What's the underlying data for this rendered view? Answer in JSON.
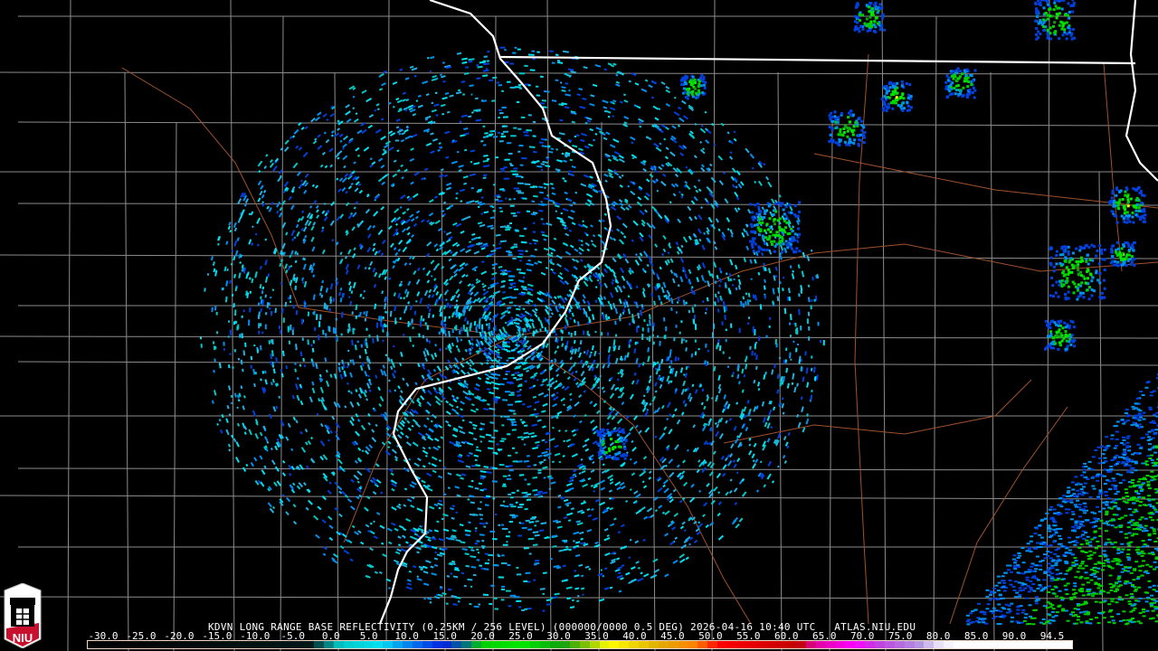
{
  "product": {
    "title": "KDVN LONG RANGE BASE REFLECTIVITY (0.25KM / 256 LEVEL) (000000/0000 0.5 DEG) 2026-04-16 10:40 UTC   ATLAS.NIU.EDU",
    "station": "KDVN",
    "elevation_deg": "0.5",
    "date": "2026-04-16",
    "time": "10:40 UTC",
    "source": "ATLAS.NIU.EDU"
  },
  "logo": {
    "text": "NIU",
    "colors": {
      "red": "#c8102e",
      "white": "#ffffff",
      "black": "#000000"
    }
  },
  "colorbar": {
    "min": -30.0,
    "max": 94.5,
    "labels": [
      "-30.0",
      "-25.0",
      "-20.0",
      "-15.0",
      "-10.0",
      "-5.0",
      "0.0",
      "5.0",
      "10.0",
      "15.0",
      "20.0",
      "25.0",
      "30.0",
      "35.0",
      "40.0",
      "45.0",
      "50.0",
      "55.0",
      "60.0",
      "65.0",
      "70.0",
      "75.0",
      "80.0",
      "85.0",
      "90.0",
      "94.5"
    ],
    "stops": [
      {
        "dbz": -30,
        "color": "#000000"
      },
      {
        "dbz": -2,
        "color": "#001818"
      },
      {
        "dbz": 0,
        "color": "#006e6e"
      },
      {
        "dbz": 2,
        "color": "#00c8c8"
      },
      {
        "dbz": 7,
        "color": "#00e0f0"
      },
      {
        "dbz": 10,
        "color": "#0090f0"
      },
      {
        "dbz": 15,
        "color": "#0020e0"
      },
      {
        "dbz": 18,
        "color": "#007878"
      },
      {
        "dbz": 20,
        "color": "#00d000"
      },
      {
        "dbz": 25,
        "color": "#00e800"
      },
      {
        "dbz": 30,
        "color": "#10a010"
      },
      {
        "dbz": 33,
        "color": "#80c000"
      },
      {
        "dbz": 36,
        "color": "#ffff00"
      },
      {
        "dbz": 42,
        "color": "#e0b000"
      },
      {
        "dbz": 47,
        "color": "#ff8000"
      },
      {
        "dbz": 50,
        "color": "#ff0000"
      },
      {
        "dbz": 60,
        "color": "#c00000"
      },
      {
        "dbz": 62,
        "color": "#e000a0"
      },
      {
        "dbz": 67,
        "color": "#ff00ff"
      },
      {
        "dbz": 70,
        "color": "#c040e0"
      },
      {
        "dbz": 75,
        "color": "#b090e0"
      },
      {
        "dbz": 78,
        "color": "#f0e8f8"
      },
      {
        "dbz": 80,
        "color": "#ffffff"
      },
      {
        "dbz": 94.5,
        "color": "#ffffff"
      }
    ]
  },
  "map": {
    "colors": {
      "state_border": "#ffffff",
      "county_border": "#8c8c8c",
      "highway": "#a0522d",
      "background": "#000000"
    },
    "echo_colors": [
      "#00c8c8",
      "#00e0f0",
      "#0090f0",
      "#20b0e0",
      "#0040e0"
    ],
    "storm_colors": [
      "#0040e0",
      "#0090f0",
      "#00d000",
      "#00e800",
      "#10a010",
      "#ffff00"
    ]
  }
}
